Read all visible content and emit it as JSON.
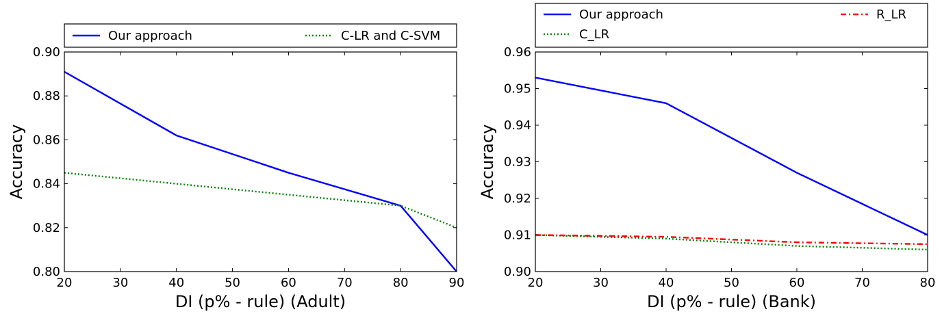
{
  "chart_data": [
    {
      "type": "line",
      "title": "",
      "xlabel": "DI (p% - rule) (Adult)",
      "ylabel": "Accuracy",
      "xlim": [
        20,
        90
      ],
      "ylim": [
        0.8,
        0.9
      ],
      "xticks": [
        "20",
        "30",
        "40",
        "50",
        "60",
        "70",
        "80",
        "90"
      ],
      "yticks": [
        "0.80",
        "0.82",
        "0.84",
        "0.86",
        "0.88",
        "0.90"
      ],
      "legend_position": "top",
      "grid": false,
      "series": [
        {
          "name": "Our approach",
          "color": "#0000ff",
          "style": "solid",
          "x": [
            20,
            40,
            60,
            80,
            90
          ],
          "y": [
            0.891,
            0.862,
            0.845,
            0.83,
            0.8
          ]
        },
        {
          "name": "C-LR and C-SVM",
          "color": "#008000",
          "style": "dotted",
          "x": [
            20,
            40,
            60,
            80,
            90
          ],
          "y": [
            0.845,
            0.84,
            0.835,
            0.83,
            0.82
          ]
        }
      ]
    },
    {
      "type": "line",
      "title": "",
      "xlabel": "DI (p% - rule) (Bank)",
      "ylabel": "Accuracy",
      "xlim": [
        20,
        80
      ],
      "ylim": [
        0.9,
        0.96
      ],
      "xticks": [
        "20",
        "30",
        "40",
        "50",
        "60",
        "70",
        "80"
      ],
      "yticks": [
        "0.90",
        "0.91",
        "0.92",
        "0.93",
        "0.94",
        "0.95",
        "0.96"
      ],
      "legend_position": "top",
      "grid": false,
      "series": [
        {
          "name": "Our approach",
          "color": "#0000ff",
          "style": "solid",
          "x": [
            20,
            40,
            60,
            80
          ],
          "y": [
            0.953,
            0.946,
            0.927,
            0.91
          ]
        },
        {
          "name": "C_LR",
          "color": "#008000",
          "style": "dotted",
          "x": [
            20,
            40,
            60,
            80
          ],
          "y": [
            0.91,
            0.909,
            0.907,
            0.906
          ]
        },
        {
          "name": "R_LR",
          "color": "#ff0000",
          "style": "dashdot",
          "x": [
            20,
            40,
            60,
            80
          ],
          "y": [
            0.91,
            0.9095,
            0.908,
            0.9075
          ]
        }
      ]
    }
  ]
}
